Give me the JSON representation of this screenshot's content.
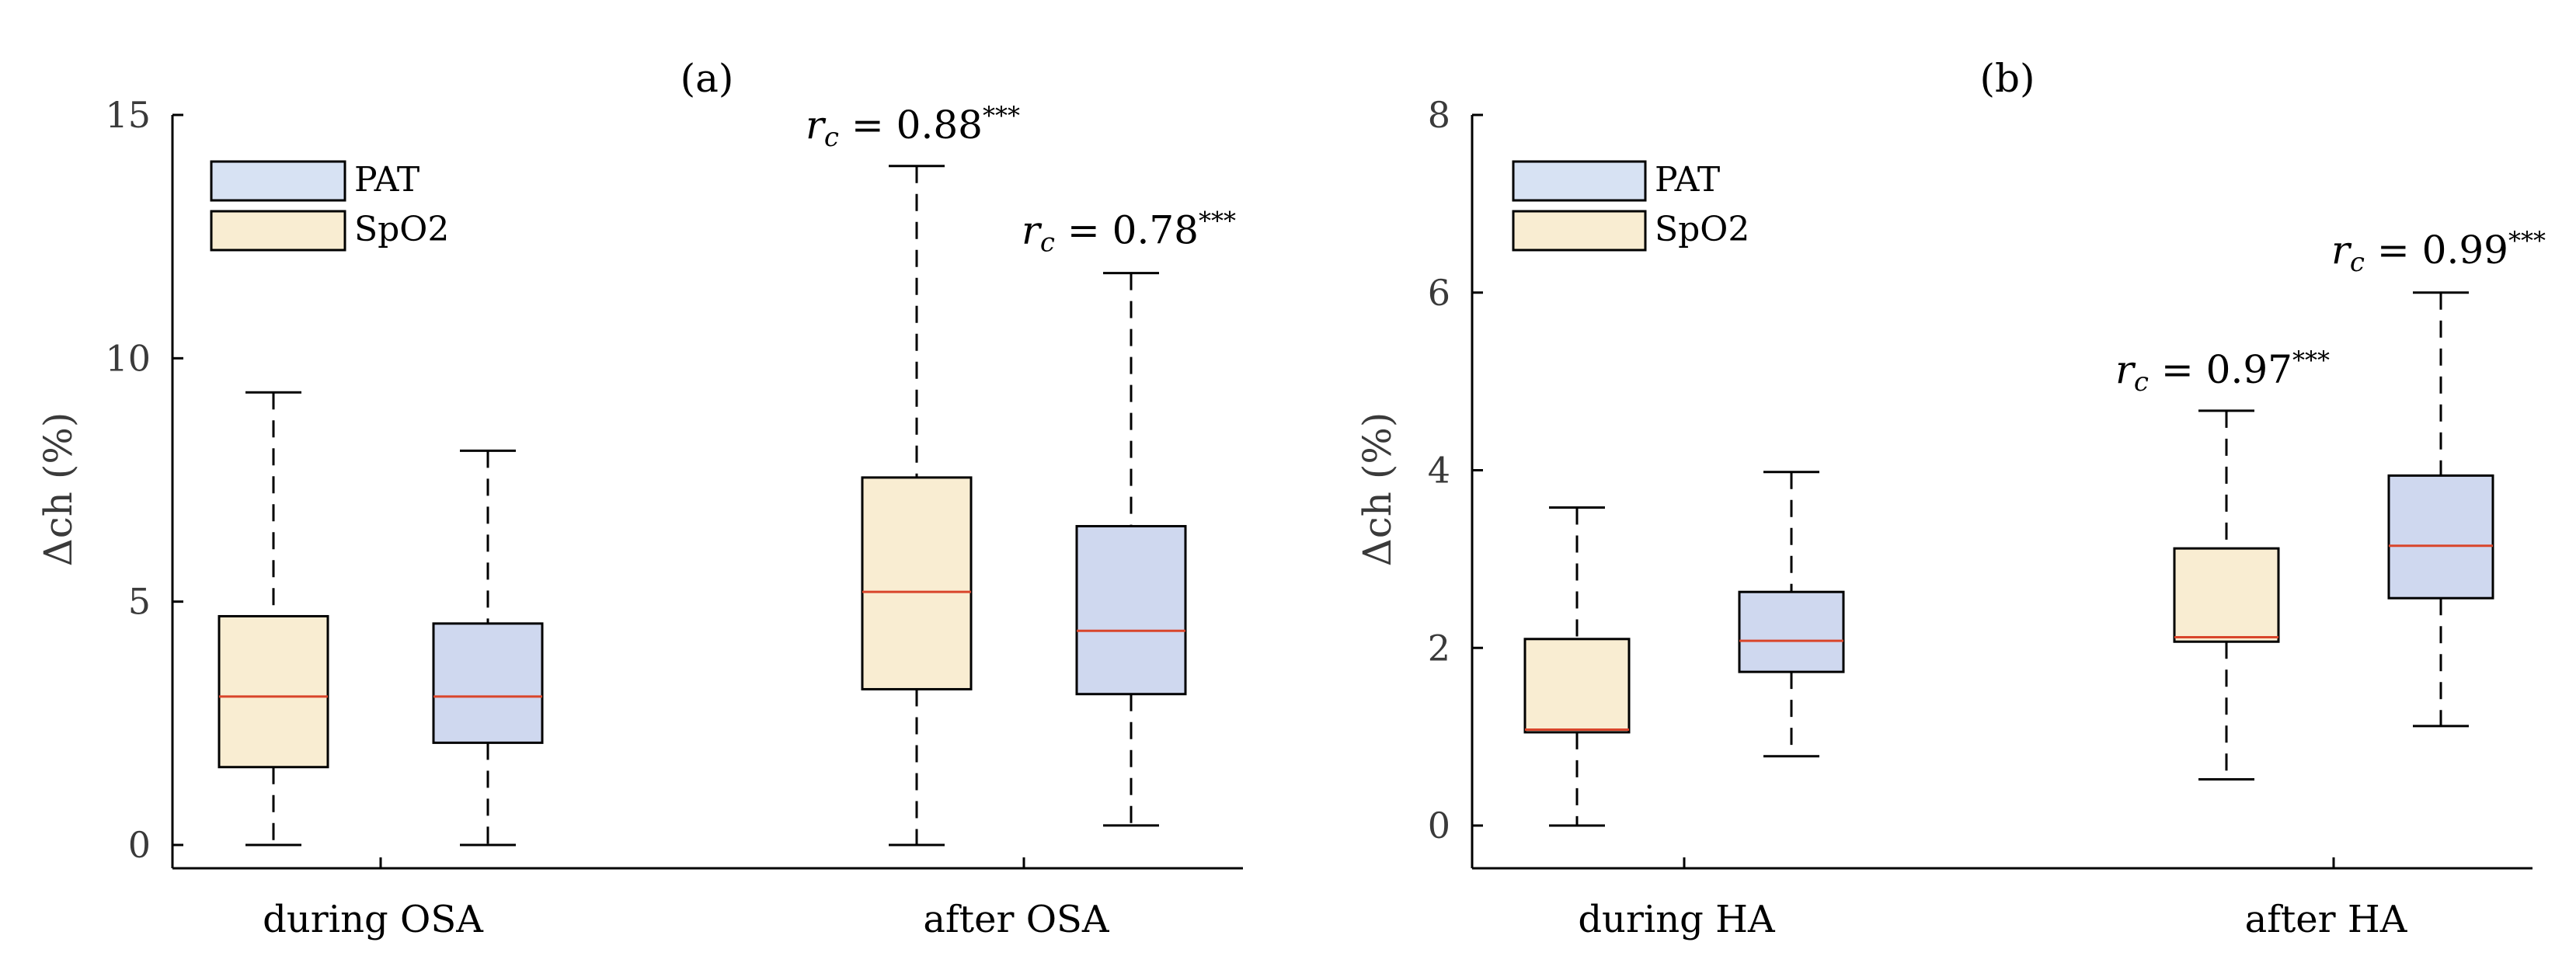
{
  "chart_data": [
    {
      "type": "box",
      "title": "(a)",
      "ylabel": "Δch (%)",
      "ylim": [
        0,
        15
      ],
      "yticks": [
        0,
        5,
        10,
        15
      ],
      "ytick_labels": [
        "0",
        "5",
        "10",
        "15"
      ],
      "categories": [
        "during OSA",
        "after OSA"
      ],
      "legend": [
        {
          "label": "PAT",
          "color": "#d7e2f3"
        },
        {
          "label": "SpO2",
          "color": "#f9edd2"
        }
      ],
      "series_colors": {
        "SpO2": "#f9edd2",
        "PAT": "#cfd8ef"
      },
      "boxes": [
        {
          "category": "during OSA",
          "series": "SpO2",
          "whisker_low": 0,
          "q1": 1.6,
          "median": 3.05,
          "q3": 4.7,
          "whisker_high": 9.3
        },
        {
          "category": "during OSA",
          "series": "PAT",
          "whisker_low": 0,
          "q1": 2.1,
          "median": 3.05,
          "q3": 4.55,
          "whisker_high": 8.1
        },
        {
          "category": "after OSA",
          "series": "SpO2",
          "whisker_low": 0,
          "q1": 3.2,
          "median": 5.2,
          "q3": 7.55,
          "whisker_high": 13.95
        },
        {
          "category": "after OSA",
          "series": "PAT",
          "whisker_low": 0.4,
          "q1": 3.1,
          "median": 4.4,
          "q3": 6.55,
          "whisker_high": 11.75
        }
      ],
      "annotations": [
        {
          "text_base": "r",
          "text_sub": "c",
          "text_value": " = 0.88",
          "text_sup": "***",
          "box_index": 2
        },
        {
          "text_base": "r",
          "text_sub": "c",
          "text_value": " = 0.78",
          "text_sup": "***",
          "box_index": 3
        }
      ]
    },
    {
      "type": "box",
      "title": "(b)",
      "ylabel": "Δch (%)",
      "ylim": [
        -0.5,
        8
      ],
      "yticks": [
        0,
        2,
        4,
        6,
        8
      ],
      "ytick_labels": [
        "0",
        "2",
        "4",
        "6",
        "8"
      ],
      "categories": [
        "during HA",
        "after HA"
      ],
      "legend": [
        {
          "label": "PAT",
          "color": "#d7e2f3"
        },
        {
          "label": "SpO2",
          "color": "#f9edd2"
        }
      ],
      "series_colors": {
        "SpO2": "#f9edd2",
        "PAT": "#cfd8ef"
      },
      "boxes": [
        {
          "category": "during HA",
          "series": "SpO2",
          "whisker_low": 0,
          "q1": 1.05,
          "median": 1.08,
          "q3": 2.1,
          "whisker_high": 3.58
        },
        {
          "category": "during HA",
          "series": "PAT",
          "whisker_low": 0.78,
          "q1": 1.73,
          "median": 2.08,
          "q3": 2.63,
          "whisker_high": 3.98
        },
        {
          "category": "after HA",
          "series": "SpO2",
          "whisker_low": 0.52,
          "q1": 2.07,
          "median": 2.12,
          "q3": 3.12,
          "whisker_high": 4.67
        },
        {
          "category": "after HA",
          "series": "PAT",
          "whisker_low": 1.12,
          "q1": 2.56,
          "median": 3.15,
          "q3": 3.94,
          "whisker_high": 6.0
        }
      ],
      "annotations": [
        {
          "text_base": "r",
          "text_sub": "c",
          "text_value": " = 0.97",
          "text_sup": "***",
          "box_index": 2
        },
        {
          "text_base": "r",
          "text_sub": "c",
          "text_value": " = 0.99",
          "text_sup": "***",
          "box_index": 3
        }
      ]
    }
  ]
}
